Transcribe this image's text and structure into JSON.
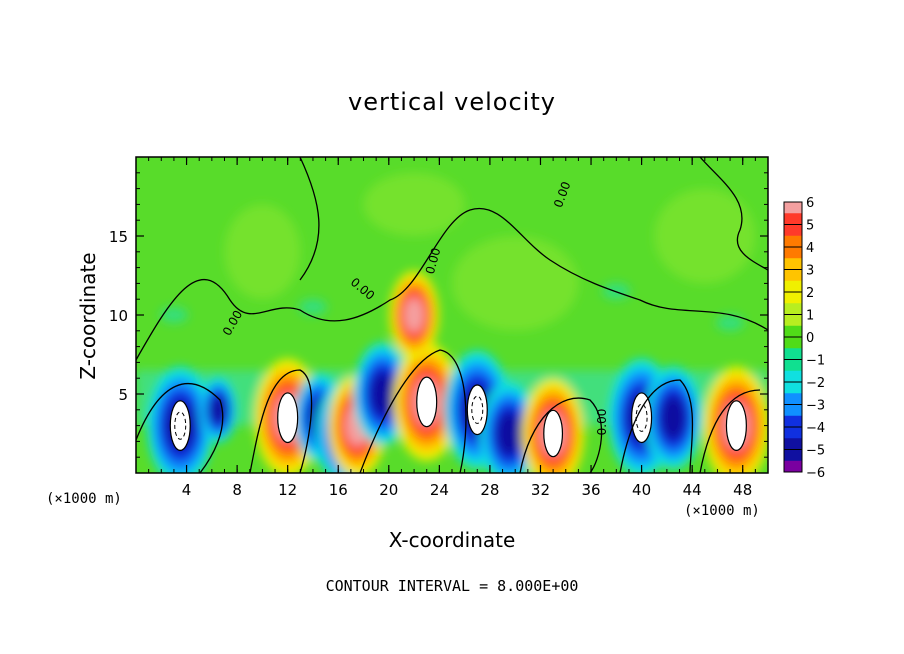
{
  "chart_data": {
    "type": "heatmap",
    "title": "vertical velocity",
    "xlabel": "X-coordinate",
    "ylabel": "Z-coordinate",
    "x_unit_label": "(×1000 m)",
    "x_unit_label_right": "(×1000 m)",
    "footer": "CONTOUR INTERVAL = 8.000E+00",
    "xlim": [
      0,
      50
    ],
    "ylim": [
      0,
      20
    ],
    "x_ticks": [
      4,
      8,
      12,
      16,
      20,
      24,
      28,
      32,
      36,
      40,
      44,
      48
    ],
    "y_ticks": [
      5,
      10,
      15
    ],
    "contour_label": "0.00",
    "colorbar": {
      "ticks": [
        "6",
        "5",
        "4",
        "3",
        "2",
        "1",
        "0",
        "−1",
        "−2",
        "−3",
        "−4",
        "−5",
        "−6"
      ],
      "colors": [
        "#f4a0a0",
        "#ff3a2a",
        "#ff7a00",
        "#ffc400",
        "#f0f000",
        "#b8ee20",
        "#50dc18",
        "#10e090",
        "#10e0e0",
        "#1090ff",
        "#1030e0",
        "#1010a0",
        "#7a00a0"
      ]
    },
    "features": [
      {
        "sign": "negative",
        "x": 3.5,
        "z": 3,
        "strength": 6
      },
      {
        "sign": "negative",
        "x": 6.5,
        "z": 4,
        "strength": 2.5
      },
      {
        "sign": "positive",
        "x": 12,
        "z": 3.5,
        "strength": 6
      },
      {
        "sign": "negative",
        "x": 14.5,
        "z": 3.5,
        "strength": 4
      },
      {
        "sign": "negative",
        "x": 16.5,
        "z": 2.5,
        "strength": 5
      },
      {
        "sign": "positive",
        "x": 17.5,
        "z": 3,
        "strength": 5
      },
      {
        "sign": "negative",
        "x": 19.5,
        "z": 5,
        "strength": 5
      },
      {
        "sign": "positive",
        "x": 23,
        "z": 4.5,
        "strength": 6
      },
      {
        "sign": "positive",
        "x": 22,
        "z": 10,
        "strength": 4
      },
      {
        "sign": "negative",
        "x": 27,
        "z": 4,
        "strength": 6
      },
      {
        "sign": "negative",
        "x": 29.5,
        "z": 2.5,
        "strength": 5
      },
      {
        "sign": "positive",
        "x": 33,
        "z": 2.5,
        "strength": 5.5
      },
      {
        "sign": "negative",
        "x": 40,
        "z": 3.5,
        "strength": 6
      },
      {
        "sign": "negative",
        "x": 42.5,
        "z": 3.5,
        "strength": 5
      },
      {
        "sign": "positive",
        "x": 47.5,
        "z": 3,
        "strength": 6
      }
    ]
  }
}
